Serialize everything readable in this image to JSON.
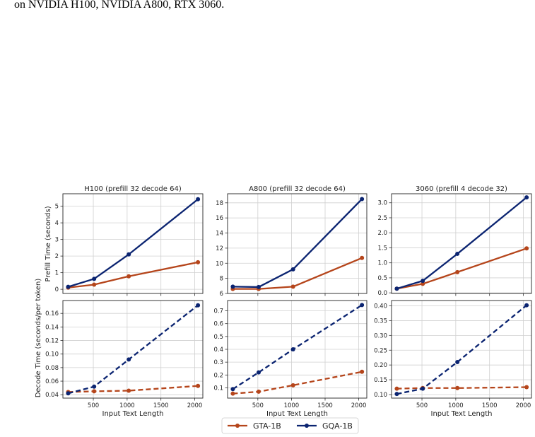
{
  "caption": "on NVIDIA H100, NVIDIA A800, RTX 3060.",
  "shared": {
    "xlabel": "Input Text Length",
    "ylabel_top": "Prefill Time (seconds)",
    "ylabel_bottom": "Decode Time (seconds/per token)",
    "x_ticks": [
      500,
      1000,
      1500,
      2000
    ],
    "x_range": [
      50,
      2120
    ],
    "legend": [
      "GTA-1B",
      "GQA-1B"
    ],
    "legend_position": "bottom-center"
  },
  "colors": {
    "GTA-1B": "#b5451b",
    "GQA-1B": "#0b2471",
    "grid": "#d0d0d0"
  },
  "chart_data": [
    {
      "type": "line",
      "title": "H100 (prefill 32 decode 64)",
      "metric": "prefill",
      "x": [
        128,
        512,
        1024,
        2048
      ],
      "series": [
        {
          "name": "GTA-1B",
          "values": [
            0.1,
            0.28,
            0.78,
            1.63
          ],
          "style": "solid"
        },
        {
          "name": "GQA-1B",
          "values": [
            0.15,
            0.63,
            2.1,
            5.42
          ],
          "style": "solid"
        }
      ],
      "ylim": [
        -0.25,
        5.75
      ],
      "y_ticks": [
        0,
        1,
        2,
        3,
        4,
        5
      ],
      "grid": true
    },
    {
      "type": "line",
      "title": "A800 (prefill 32 decode 64)",
      "metric": "prefill",
      "x": [
        128,
        512,
        1024,
        2048
      ],
      "series": [
        {
          "name": "GTA-1B",
          "values": [
            6.6,
            6.6,
            6.9,
            10.7
          ],
          "style": "solid"
        },
        {
          "name": "GQA-1B",
          "values": [
            6.9,
            6.85,
            9.2,
            18.5
          ],
          "style": "solid"
        }
      ],
      "ylim": [
        6,
        19.2
      ],
      "y_ticks": [
        6,
        8,
        10,
        12,
        14,
        16,
        18
      ],
      "grid": true
    },
    {
      "type": "line",
      "title": "3060 (prefill 4 decode 32)",
      "metric": "prefill",
      "x": [
        128,
        512,
        1024,
        2048
      ],
      "series": [
        {
          "name": "GTA-1B",
          "values": [
            0.14,
            0.3,
            0.69,
            1.48
          ],
          "style": "solid"
        },
        {
          "name": "GQA-1B",
          "values": [
            0.14,
            0.4,
            1.3,
            3.18
          ],
          "style": "solid"
        }
      ],
      "ylim": [
        -0.02,
        3.3
      ],
      "y_ticks": [
        0.0,
        0.5,
        1.0,
        1.5,
        2.0,
        2.5,
        3.0
      ],
      "grid": true
    },
    {
      "type": "line",
      "title": "",
      "metric": "decode",
      "x": [
        128,
        512,
        1024,
        2048
      ],
      "series": [
        {
          "name": "GTA-1B",
          "values": [
            0.044,
            0.045,
            0.046,
            0.053
          ],
          "style": "dashed"
        },
        {
          "name": "GQA-1B",
          "values": [
            0.042,
            0.052,
            0.092,
            0.172
          ],
          "style": "dashed"
        }
      ],
      "ylim": [
        0.035,
        0.179
      ],
      "y_ticks": [
        0.04,
        0.06,
        0.08,
        0.1,
        0.12,
        0.14,
        0.16
      ],
      "grid": true
    },
    {
      "type": "line",
      "title": "",
      "metric": "decode",
      "x": [
        128,
        512,
        1024,
        2048
      ],
      "series": [
        {
          "name": "GTA-1B",
          "values": [
            0.055,
            0.07,
            0.12,
            0.225
          ],
          "style": "dashed"
        },
        {
          "name": "GQA-1B",
          "values": [
            0.09,
            0.22,
            0.4,
            0.745
          ],
          "style": "dashed"
        }
      ],
      "ylim": [
        0.02,
        0.78
      ],
      "y_ticks": [
        0.1,
        0.2,
        0.3,
        0.4,
        0.5,
        0.6,
        0.7
      ],
      "grid": true
    },
    {
      "type": "line",
      "title": "",
      "metric": "decode",
      "x": [
        128,
        512,
        1024,
        2048
      ],
      "series": [
        {
          "name": "GTA-1B",
          "values": [
            0.12,
            0.122,
            0.122,
            0.125
          ],
          "style": "dashed"
        },
        {
          "name": "GQA-1B",
          "values": [
            0.102,
            0.12,
            0.21,
            0.402
          ],
          "style": "dashed"
        }
      ],
      "ylim": [
        0.088,
        0.418
      ],
      "y_ticks": [
        0.1,
        0.15,
        0.2,
        0.25,
        0.3,
        0.35,
        0.4
      ],
      "grid": true
    }
  ]
}
